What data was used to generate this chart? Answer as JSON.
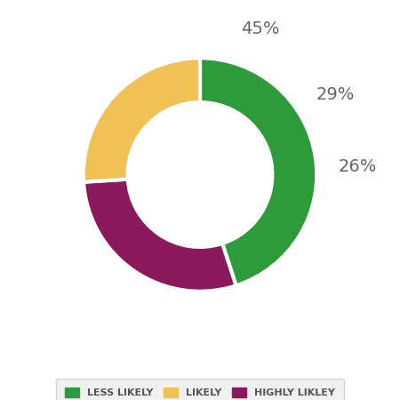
{
  "labels": [
    "LESS LIKELY",
    "HIGHLY LIKLEY",
    "LIKELY"
  ],
  "values": [
    45,
    29,
    26
  ],
  "colors": [
    "#2d9b3a",
    "#8b1a5c",
    "#f2c155"
  ],
  "pct_labels": [
    "45%",
    "29%",
    "26%"
  ],
  "pct_offsets": [
    1.35,
    1.35,
    1.35
  ],
  "legend_labels": [
    "LESS LIKELY",
    "LIKELY",
    "HIGHLY LIKLEY"
  ],
  "legend_colors": [
    "#2d9b3a",
    "#f2c155",
    "#8b1a5c"
  ],
  "background_color": "#ffffff",
  "legend_bg_color": "#eeeeee",
  "pct_fontsize": 14,
  "legend_fontsize": 8,
  "donut_width": 0.38,
  "start_angle": 90
}
